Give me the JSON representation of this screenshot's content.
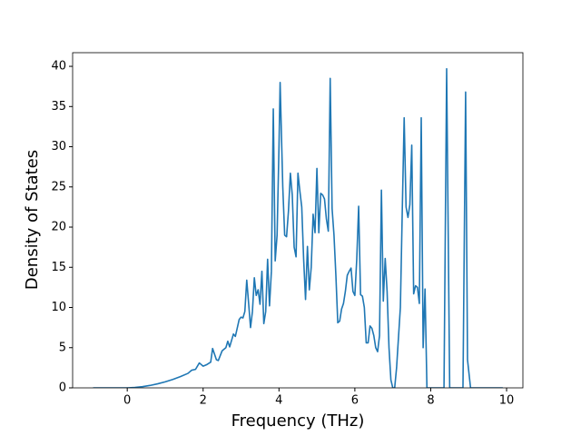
{
  "chart_data": {
    "type": "line",
    "x_label": "Frequency (THz)",
    "y_label": "Density of States",
    "xlim": [
      -1.44,
      10.43
    ],
    "ylim": [
      0,
      41.7
    ],
    "xticks": [
      0,
      2,
      4,
      6,
      8,
      10
    ],
    "yticks": [
      0,
      5,
      10,
      15,
      20,
      25,
      30,
      35,
      40
    ],
    "series": [
      {
        "color": "#1f77b4",
        "x": [
          -0.9,
          -0.5,
          0,
          0.2,
          0.4,
          0.6,
          0.8,
          1.0,
          1.2,
          1.4,
          1.6,
          1.7,
          1.8,
          1.9,
          2.0,
          2.1,
          2.2,
          2.25,
          2.35,
          2.4,
          2.5,
          2.6,
          2.65,
          2.7,
          2.8,
          2.85,
          2.95,
          3.0,
          3.05,
          3.1,
          3.15,
          3.2,
          3.25,
          3.3,
          3.35,
          3.4,
          3.45,
          3.5,
          3.55,
          3.6,
          3.65,
          3.7,
          3.75,
          3.8,
          3.85,
          3.9,
          3.95,
          4.0,
          4.03,
          4.1,
          4.15,
          4.2,
          4.25,
          4.3,
          4.35,
          4.4,
          4.45,
          4.5,
          4.55,
          4.6,
          4.65,
          4.7,
          4.75,
          4.8,
          4.85,
          4.9,
          4.95,
          5.0,
          5.05,
          5.1,
          5.15,
          5.2,
          5.25,
          5.3,
          5.35,
          5.4,
          5.45,
          5.5,
          5.55,
          5.6,
          5.65,
          5.7,
          5.75,
          5.8,
          5.85,
          5.9,
          5.95,
          6.0,
          6.05,
          6.1,
          6.15,
          6.2,
          6.25,
          6.3,
          6.35,
          6.4,
          6.45,
          6.5,
          6.55,
          6.6,
          6.65,
          6.7,
          6.75,
          6.8,
          6.85,
          6.9,
          6.95,
          7.0,
          7.05,
          7.1,
          7.2,
          7.25,
          7.3,
          7.35,
          7.4,
          7.45,
          7.5,
          7.55,
          7.6,
          7.65,
          7.7,
          7.75,
          7.8,
          7.85,
          7.9,
          8.0,
          8.35,
          8.42,
          8.5,
          8.85,
          8.92,
          8.97,
          9.05,
          9.5,
          9.9
        ],
        "values": [
          0,
          0,
          0,
          0.05,
          0.15,
          0.3,
          0.5,
          0.75,
          1.05,
          1.4,
          1.8,
          2.2,
          2.3,
          3.1,
          2.7,
          2.9,
          3.2,
          4.9,
          3.5,
          3.4,
          4.6,
          5.0,
          5.8,
          5.1,
          6.7,
          6.4,
          8.5,
          8.8,
          8.7,
          9.5,
          13.4,
          10.5,
          7.5,
          9.5,
          13.7,
          11.5,
          12.2,
          10.4,
          14.5,
          8.0,
          9.5,
          16.0,
          10.2,
          14.5,
          34.7,
          15.8,
          19.0,
          30,
          38.0,
          25,
          19.0,
          18.8,
          22,
          26.7,
          24,
          17.5,
          16.3,
          26.7,
          24.5,
          22.5,
          16,
          11.0,
          17.6,
          12.2,
          15,
          21.6,
          19.3,
          27.3,
          19.3,
          24.2,
          24.0,
          23.5,
          21,
          19.5,
          38.5,
          22.3,
          19,
          14,
          8.1,
          8.3,
          9.8,
          10.5,
          12,
          14.0,
          14.5,
          14.9,
          12,
          11.5,
          16,
          22.6,
          11.6,
          11.4,
          10,
          5.6,
          5.6,
          7.7,
          7.4,
          6.5,
          5.0,
          4.5,
          6.5,
          24.6,
          10.8,
          16.1,
          12,
          5.0,
          1.0,
          0,
          0,
          2.5,
          10,
          22,
          33.6,
          22.5,
          21.2,
          22.8,
          30.2,
          11.7,
          12.7,
          12.5,
          10.5,
          33.6,
          5.0,
          12.3,
          0,
          0,
          0,
          39.7,
          0,
          0,
          36.8,
          3.5,
          0,
          0,
          0
        ]
      }
    ]
  }
}
